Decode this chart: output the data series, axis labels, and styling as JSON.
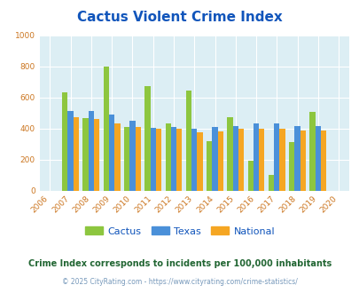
{
  "title": "Cactus Violent Crime Index",
  "subtitle": "Crime Index corresponds to incidents per 100,000 inhabitants",
  "footer": "© 2025 CityRating.com - https://www.cityrating.com/crime-statistics/",
  "years": [
    2006,
    2007,
    2008,
    2009,
    2010,
    2011,
    2012,
    2013,
    2014,
    2015,
    2016,
    2017,
    2018,
    2019,
    2020
  ],
  "data_years": [
    2007,
    2008,
    2009,
    2010,
    2011,
    2012,
    2013,
    2014,
    2015,
    2016,
    2017,
    2018,
    2019
  ],
  "cactus": [
    630,
    465,
    800,
    408,
    670,
    430,
    645,
    315,
    472,
    192,
    100,
    310,
    505
  ],
  "texas": [
    510,
    510,
    490,
    450,
    405,
    407,
    400,
    408,
    415,
    430,
    430,
    412,
    415
  ],
  "national": [
    470,
    460,
    430,
    407,
    400,
    395,
    375,
    380,
    395,
    400,
    398,
    385,
    385
  ],
  "cactus_color": "#8dc63f",
  "texas_color": "#4a90d9",
  "national_color": "#f5a623",
  "bg_color": "#dceef4",
  "title_color": "#1155bb",
  "subtitle_color": "#226633",
  "footer_color": "#7799bb",
  "legend_text_color": "#1155bb",
  "tick_color": "#cc7722",
  "ylim": [
    0,
    1000
  ],
  "yticks": [
    0,
    200,
    400,
    600,
    800,
    1000
  ],
  "bar_width": 0.27
}
